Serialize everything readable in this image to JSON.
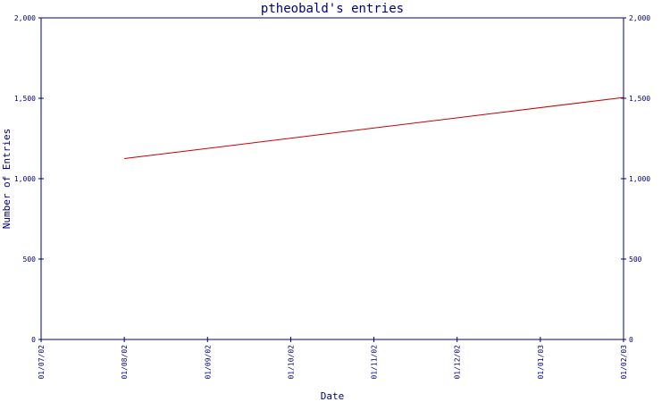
{
  "chart_data": {
    "type": "line",
    "title": "ptheobald's entries",
    "xlabel": "Date",
    "ylabel": "Number of Entries",
    "x_ticks": [
      "01/07/02",
      "01/08/02",
      "01/09/02",
      "01/10/02",
      "01/11/02",
      "01/12/02",
      "01/01/03",
      "01/02/03"
    ],
    "y_ticks": [
      "0",
      "500",
      "1,000",
      "1,500",
      "2,000"
    ],
    "ylim": [
      0,
      2000
    ],
    "xlim": [
      "01/07/02",
      "01/02/03"
    ],
    "grid": false,
    "series": [
      {
        "color": "#cc0000",
        "points": [
          {
            "x": "01/08/02",
            "y": 1125
          },
          {
            "x": "01/02/03",
            "y": 1505
          }
        ]
      }
    ],
    "colors": {
      "axis": "#000080",
      "text": "#000080",
      "title": "#000080",
      "line": "#cc0000"
    }
  }
}
